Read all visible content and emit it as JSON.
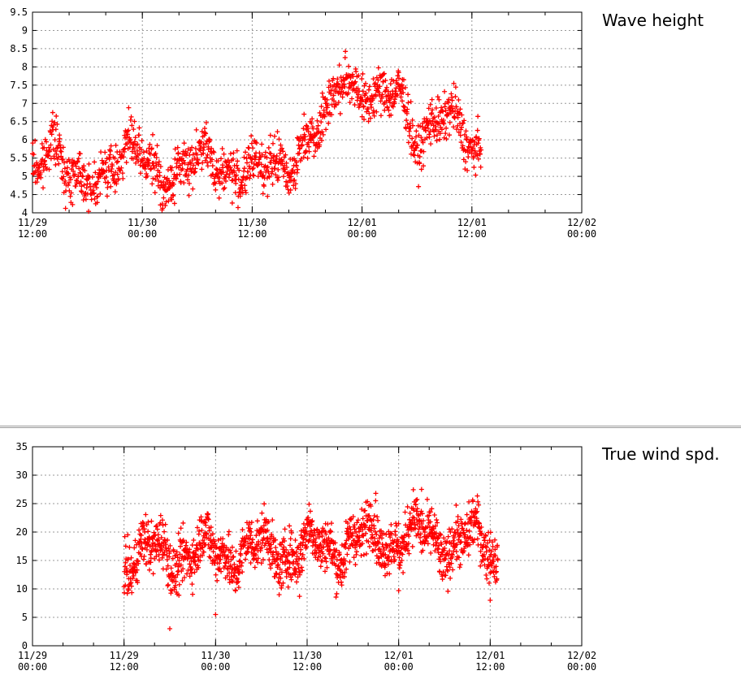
{
  "colors": {
    "series": "#ff0000",
    "grid": "#999999",
    "frame": "#000000",
    "separator": "#9a9a9a"
  },
  "chart_data": [
    {
      "type": "scatter",
      "title": "Wave height",
      "marker": "+",
      "grid": true,
      "ylim": [
        4,
        9.5
      ],
      "yticks": [
        "4",
        "4.5",
        "5",
        "5.5",
        "6",
        "6.5",
        "7",
        "7.5",
        "8",
        "8.5",
        "9",
        "9.5"
      ],
      "xlim": [
        "11/29 12:00",
        "12/02 00:00"
      ],
      "xticks": [
        {
          "date": "11/29",
          "time": "12:00"
        },
        {
          "date": "11/30",
          "time": "00:00"
        },
        {
          "date": "11/30",
          "time": "12:00"
        },
        {
          "date": "12/01",
          "time": "00:00"
        },
        {
          "date": "12/01",
          "time": "12:00"
        },
        {
          "date": "12/02",
          "time": "00:00"
        }
      ],
      "data_range": [
        "11/29 12:00",
        "12/01 13:00"
      ],
      "trend": [
        {
          "x": "11/29 12:00",
          "y": 5.6
        },
        {
          "x": "11/29 14:00",
          "y": 5.9
        },
        {
          "x": "11/29 16:00",
          "y": 4.7
        },
        {
          "x": "11/29 20:00",
          "y": 5.3
        },
        {
          "x": "11/30 00:00",
          "y": 5.5
        },
        {
          "x": "11/30 04:00",
          "y": 5.0
        },
        {
          "x": "11/30 08:00",
          "y": 5.6
        },
        {
          "x": "11/30 12:00",
          "y": 4.9
        },
        {
          "x": "11/30 16:00",
          "y": 5.6
        },
        {
          "x": "11/30 20:00",
          "y": 6.3
        },
        {
          "x": "11/30 22:00",
          "y": 8.0
        },
        {
          "x": "12/01 00:00",
          "y": 7.5
        },
        {
          "x": "12/01 02:00",
          "y": 6.8
        },
        {
          "x": "12/01 04:00",
          "y": 7.3
        },
        {
          "x": "12/01 06:00",
          "y": 6.2
        },
        {
          "x": "12/01 08:00",
          "y": 6.5
        },
        {
          "x": "12/01 10:00",
          "y": 6.3
        },
        {
          "x": "12/01 13:00",
          "y": 5.8
        }
      ],
      "spread": 0.45
    },
    {
      "type": "scatter",
      "title": "True wind spd.",
      "marker": "+",
      "grid": true,
      "ylim": [
        0,
        35
      ],
      "yticks": [
        "0",
        "5",
        "10",
        "15",
        "20",
        "25",
        "30",
        "35"
      ],
      "xlim": [
        "11/29 00:00",
        "12/02 00:00"
      ],
      "xticks": [
        {
          "date": "11/29",
          "time": "00:00"
        },
        {
          "date": "11/29",
          "time": "12:00"
        },
        {
          "date": "11/30",
          "time": "00:00"
        },
        {
          "date": "11/30",
          "time": "12:00"
        },
        {
          "date": "12/01",
          "time": "00:00"
        },
        {
          "date": "12/01",
          "time": "12:00"
        },
        {
          "date": "12/02",
          "time": "00:00"
        }
      ],
      "data_range": [
        "11/29 12:00",
        "12/01 13:00"
      ],
      "trend": [
        {
          "x": "11/29 12:00",
          "y": 16
        },
        {
          "x": "11/30 00:00",
          "y": 16.5
        },
        {
          "x": "11/30 12:00",
          "y": 17
        },
        {
          "x": "12/01 00:00",
          "y": 19.5
        },
        {
          "x": "12/01 06:00",
          "y": 18.5
        },
        {
          "x": "12/01 12:00",
          "y": 18
        },
        {
          "x": "12/01 13:00",
          "y": 15
        }
      ],
      "spread": 3.2,
      "outliers": [
        {
          "x": "11/29 18:00",
          "y": 3.0
        },
        {
          "x": "11/30 00:00",
          "y": 5.5
        },
        {
          "x": "11/30 11:00",
          "y": 8.7
        },
        {
          "x": "12/01 00:00",
          "y": 9.7
        },
        {
          "x": "12/01 12:00",
          "y": 8.0
        },
        {
          "x": "11/30 21:00",
          "y": 26.8
        },
        {
          "x": "12/01 03:00",
          "y": 27.5
        }
      ]
    }
  ]
}
